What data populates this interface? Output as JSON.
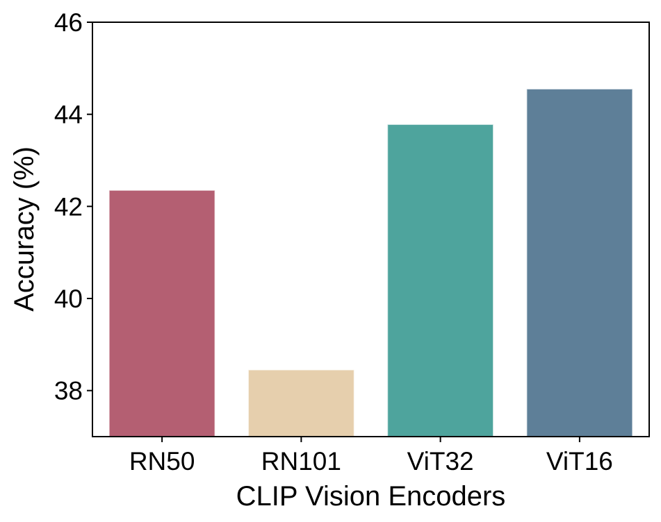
{
  "chart_data": {
    "type": "bar",
    "title": "",
    "xlabel": "CLIP Vision Encoders",
    "ylabel": "Accuracy (%)",
    "categories": [
      "RN50",
      "RN101",
      "ViT32",
      "ViT16"
    ],
    "values": [
      42.35,
      38.45,
      43.78,
      44.55
    ],
    "colors": [
      "#b45f72",
      "#e6cfad",
      "#4ea49d",
      "#5e7f98"
    ],
    "ylim": [
      37,
      46
    ],
    "yticks": [
      38,
      40,
      42,
      44,
      46
    ],
    "grid": false,
    "legend": "none"
  }
}
